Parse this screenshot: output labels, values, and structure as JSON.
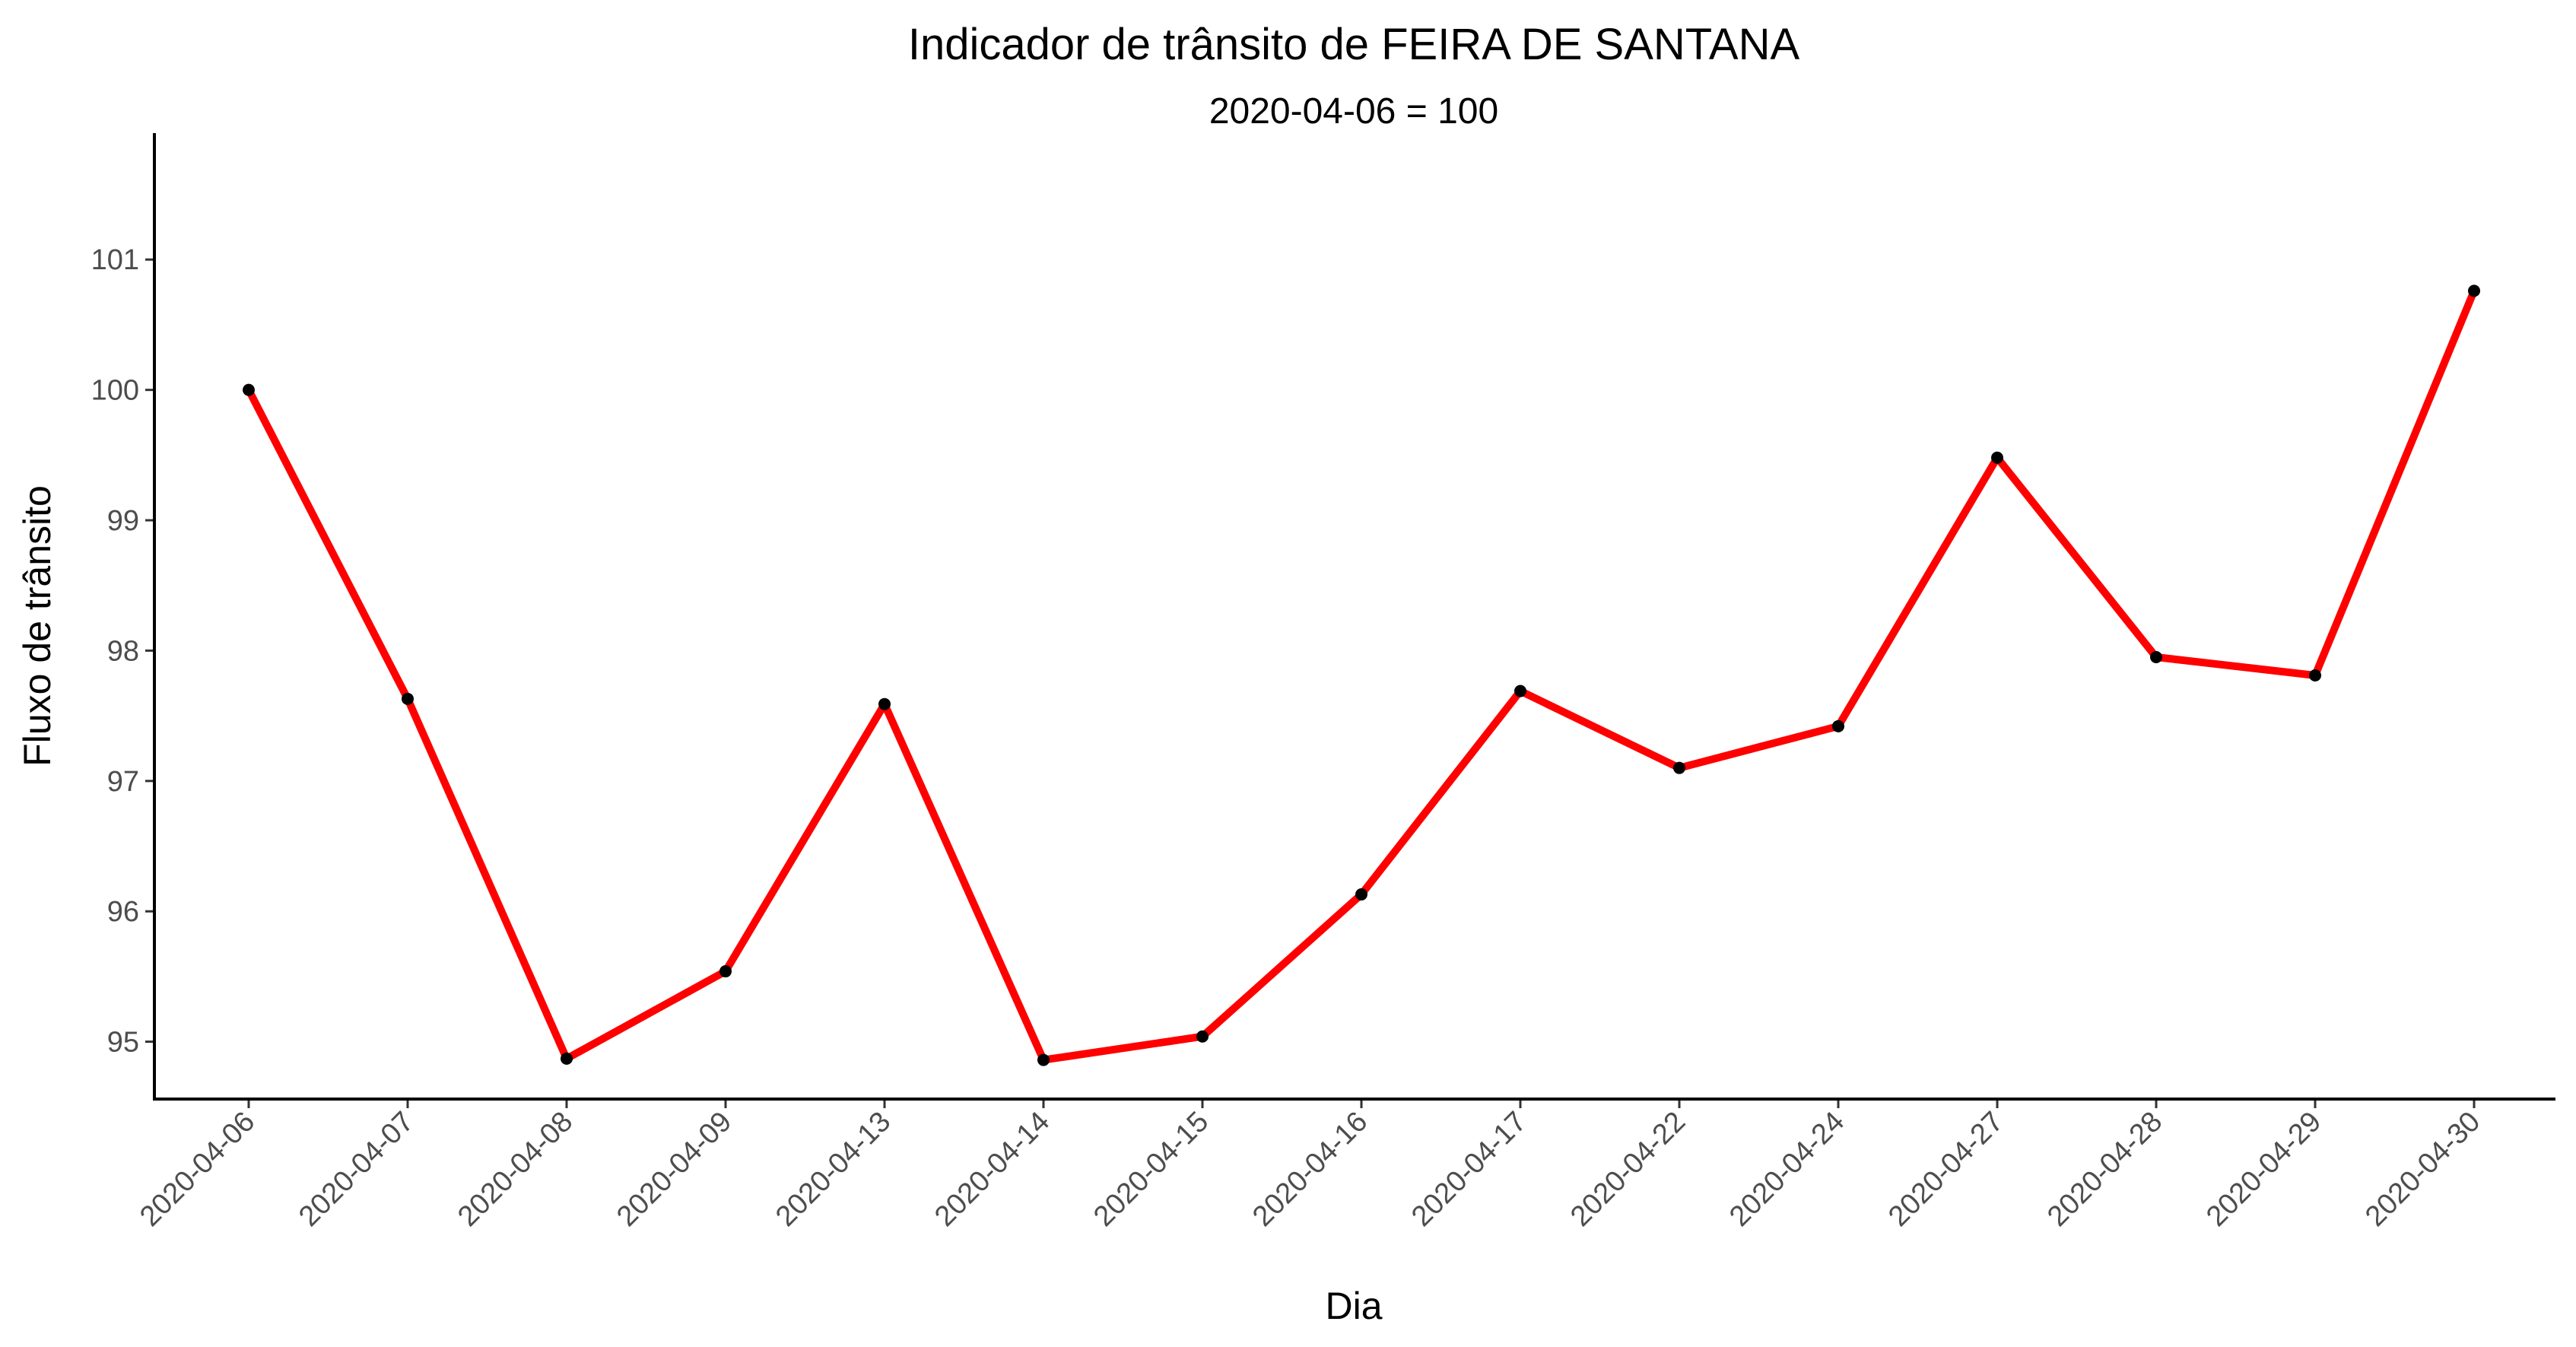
{
  "chart_data": {
    "type": "line",
    "title": "Indicador de trânsito de FEIRA DE SANTANA",
    "subtitle": "2020-04-06 = 100",
    "xlabel": "Dia",
    "ylabel": "Fluxo de trânsito",
    "categories": [
      "2020-04-06",
      "2020-04-07",
      "2020-04-08",
      "2020-04-09",
      "2020-04-13",
      "2020-04-14",
      "2020-04-15",
      "2020-04-16",
      "2020-04-17",
      "2020-04-22",
      "2020-04-24",
      "2020-04-27",
      "2020-04-28",
      "2020-04-29",
      "2020-04-30"
    ],
    "series": [
      {
        "values": [
          100.0,
          97.63,
          94.87,
          95.54,
          97.59,
          94.86,
          95.04,
          96.13,
          97.69,
          97.1,
          97.42,
          99.48,
          97.95,
          97.81,
          100.76
        ],
        "color": "#ff0000",
        "marker_color": "#000000"
      }
    ],
    "yticks": [
      95,
      96,
      97,
      98,
      99,
      100,
      101
    ],
    "ylim": [
      94.56,
      101.97
    ],
    "grid": false,
    "legend": "none"
  }
}
